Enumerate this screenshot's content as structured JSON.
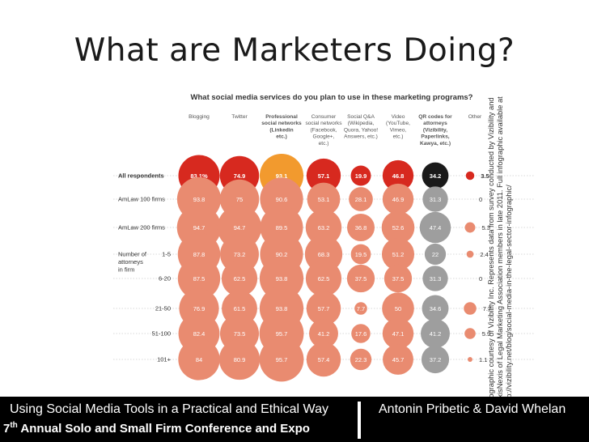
{
  "slide": {
    "title": "What are Marketers Doing?",
    "credit": "Infographic courtesy of Vizibility Inc. Represents data from survey conducted by Vizibility and LexisNexis of Legal Marketing Association members in late 2011. Full infographic available at http://vizibility.net/blog/social-media-in-the-legal-sector-infographic/",
    "footer_left_line1": "Using Social Media Tools in a Practical and Ethical Way",
    "footer_left_line2_ordinal": "7",
    "footer_left_line2_suffix": "th",
    "footer_left_line2_rest": " Annual Solo and Small Firm Conference and Expo",
    "footer_right": "Antonin Pribetic & David Whelan"
  },
  "colors": {
    "highlight_red": "#d7291f",
    "highlight_orange": "#f29a2e",
    "highlight_black": "#1a1a1a",
    "row_salmon": "#e98b70",
    "row_grey": "#9e9e9e"
  },
  "chart_data": {
    "type": "table",
    "title": "What social media services do you plan to use in these marketing programs?",
    "columns": [
      "Blogging",
      "Twitter",
      "Professional social networks (Linkedin etc.)",
      "Consumer social networks (Facebook, Google+, etc.)",
      "Social Q&A (Wikipedia, Quora, Yahoo! Answers, etc.)",
      "Video (YouTube, Vimeo, etc.)",
      "QR codes for attorneys (Vizibility, Paperlinks, Kawya, etc.)",
      "Other"
    ],
    "column_labels": [
      [
        "Blogging"
      ],
      [
        "Twitter"
      ],
      [
        "Professional",
        "social networks",
        "(Linkedin",
        "etc.)"
      ],
      [
        "Consumer",
        "social networks",
        "(Facebook,",
        "Google+,",
        "etc.)"
      ],
      [
        "Social Q&A",
        "(Wikipedia,",
        "Quora, Yahoo!",
        "Answers, etc.)"
      ],
      [
        "Video",
        "(YouTube,",
        "Vimeo,",
        "etc.)"
      ],
      [
        "QR codes for",
        "attorneys",
        "(Vizibility,",
        "Paperlinks,",
        "Kawya, etc.)"
      ],
      [
        "Other"
      ]
    ],
    "bold_columns": [
      2,
      6
    ],
    "group_label": [
      "Number of",
      "attorneys",
      "in firm"
    ],
    "rows": [
      {
        "label": "All respondents",
        "bold": true,
        "values": [
          83.1,
          74.9,
          93.1,
          57.1,
          19.9,
          46.8,
          34.2,
          3.5
        ],
        "labels": [
          "83.1%",
          "74.9",
          "93.1",
          "57.1",
          "19.9",
          "46.8",
          "34.2",
          "3.5"
        ]
      },
      {
        "label": "AmLaw 100 firms",
        "values": [
          93.8,
          75,
          90.6,
          53.1,
          28.1,
          46.9,
          31.3,
          0
        ],
        "labels": [
          "93.8",
          "75",
          "90.6",
          "53.1",
          "28.1",
          "46.9",
          "31.3",
          "0"
        ]
      },
      {
        "label": "AmLaw 200 firms",
        "values": [
          94.7,
          94.7,
          89.5,
          63.2,
          36.8,
          52.6,
          47.4,
          5.3
        ],
        "labels": [
          "94.7",
          "94.7",
          "89.5",
          "63.2",
          "36.8",
          "52.6",
          "47.4",
          "5.3"
        ]
      },
      {
        "label": "1-5",
        "values": [
          87.8,
          73.2,
          90.2,
          68.3,
          19.5,
          51.2,
          22,
          2.4
        ],
        "labels": [
          "87.8",
          "73.2",
          "90.2",
          "68.3",
          "19.5",
          "51.2",
          "22",
          "2.4"
        ]
      },
      {
        "label": "6-20",
        "values": [
          87.5,
          62.5,
          93.8,
          62.5,
          37.5,
          37.5,
          31.3,
          0
        ],
        "labels": [
          "87.5",
          "62.5",
          "93.8",
          "62.5",
          "37.5",
          "37.5",
          "31.3",
          "0"
        ]
      },
      {
        "label": "21-50",
        "values": [
          76.9,
          61.5,
          93.8,
          57.7,
          7.7,
          50,
          34.6,
          7.7
        ],
        "labels": [
          "76.9",
          "61.5",
          "93.8",
          "57.7",
          "7.7",
          "50",
          "34.6",
          "7.7"
        ]
      },
      {
        "label": "51-100",
        "values": [
          82.4,
          73.5,
          95.7,
          41.2,
          17.6,
          47.1,
          41.2,
          5.9
        ],
        "labels": [
          "82.4",
          "73.5",
          "95.7",
          "41.2",
          "17.6",
          "47.1",
          "41.2",
          "5.9"
        ]
      },
      {
        "label": "101+",
        "values": [
          84,
          80.9,
          95.7,
          57.4,
          22.3,
          45.7,
          37.2,
          1.1
        ],
        "labels": [
          "84",
          "80.9",
          "95.7",
          "57.4",
          "22.3",
          "45.7",
          "37.2",
          "1.1"
        ]
      }
    ]
  }
}
